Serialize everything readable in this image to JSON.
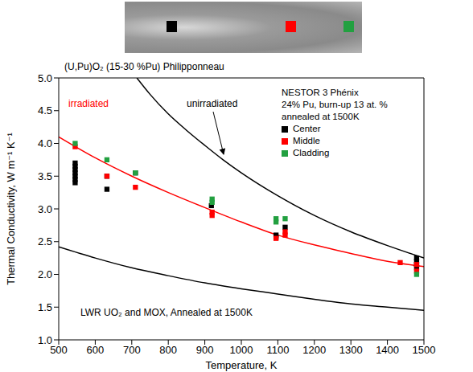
{
  "chart_data": {
    "type": "scatter",
    "xlabel": "Temperature, K",
    "ylabel": "Thermal Conductivity, W m⁻¹ K⁻¹",
    "xlim": [
      500,
      1500
    ],
    "ylim": [
      1,
      5
    ],
    "xticks": [
      500,
      600,
      700,
      800,
      900,
      1000,
      1100,
      1200,
      1300,
      1400,
      1500
    ],
    "yticks": [
      {
        "value": 1,
        "label": "1.0"
      },
      1.5,
      {
        "value": 2,
        "label": "2.0"
      },
      2.5,
      {
        "value": 3,
        "label": "3.0"
      },
      3.5,
      {
        "value": 4,
        "label": "4.0"
      },
      4.5,
      {
        "value": 5,
        "label": "5.0"
      }
    ],
    "grid": false,
    "legend": "upper right",
    "legend_title": [
      "NESTOR 3 Phénix",
      "24% Pu, burn-up 13 at. %",
      "annealed at 1500K"
    ],
    "annotations": [
      "(U,Pu)O₂ (15-30 %Pu) Philipponneau"
    ],
    "series": [
      {
        "name": "unirradiated",
        "type": "line",
        "color": "#000000",
        "line_style": "solid",
        "x": [
          714,
          750,
          800,
          850,
          900,
          950,
          1000,
          1100,
          1200,
          1300,
          1400,
          1500
        ],
        "values": [
          5.0,
          4.75,
          4.45,
          4.2,
          3.97,
          3.75,
          3.55,
          3.2,
          2.9,
          2.65,
          2.44,
          2.25
        ]
      },
      {
        "name": "irradiated",
        "type": "line",
        "color": "#ff0000",
        "line_style": "solid",
        "x": [
          500,
          600,
          700,
          800,
          900,
          1000,
          1100,
          1200,
          1300,
          1400,
          1500
        ],
        "values": [
          4.1,
          3.78,
          3.5,
          3.25,
          3.02,
          2.8,
          2.6,
          2.45,
          2.32,
          2.2,
          2.12
        ]
      },
      {
        "name": "LWR UO₂ and MOX, Annealed at 1500K",
        "type": "line",
        "color": "#000000",
        "line_style": "solid",
        "x": [
          500,
          600,
          700,
          800,
          900,
          1000,
          1100,
          1200,
          1300,
          1400,
          1500
        ],
        "values": [
          2.42,
          2.25,
          2.1,
          1.98,
          1.87,
          1.78,
          1.7,
          1.62,
          1.55,
          1.5,
          1.45
        ]
      },
      {
        "name": "Center",
        "type": "scatter",
        "color": "#000000",
        "marker": "square",
        "x": [
          545,
          545,
          545,
          545,
          545,
          545,
          545,
          632,
          632,
          710,
          918,
          1095,
          1095,
          1120,
          1480,
          1480,
          1480,
          1480
        ],
        "values": [
          3.7,
          3.65,
          3.6,
          3.55,
          3.5,
          3.45,
          3.4,
          3.5,
          3.3,
          3.55,
          3.05,
          2.6,
          2.57,
          2.72,
          2.25,
          2.2,
          2.15,
          2.1
        ]
      },
      {
        "name": "Middle",
        "type": "scatter",
        "color": "#ff0000",
        "marker": "square",
        "x": [
          545,
          632,
          710,
          920,
          920,
          1095,
          1120,
          1120,
          1435,
          1480,
          1480
        ],
        "values": [
          3.95,
          3.5,
          3.33,
          2.95,
          2.9,
          2.55,
          2.65,
          2.6,
          2.18,
          2.05,
          2.15
        ]
      },
      {
        "name": "Cladding",
        "type": "scatter",
        "color": "#22a040",
        "marker": "square",
        "x": [
          545,
          632,
          710,
          920,
          920,
          1095,
          1095,
          1120,
          1480
        ],
        "values": [
          4.0,
          3.75,
          3.55,
          3.15,
          3.1,
          2.85,
          2.8,
          2.85,
          2.0
        ]
      }
    ]
  }
}
